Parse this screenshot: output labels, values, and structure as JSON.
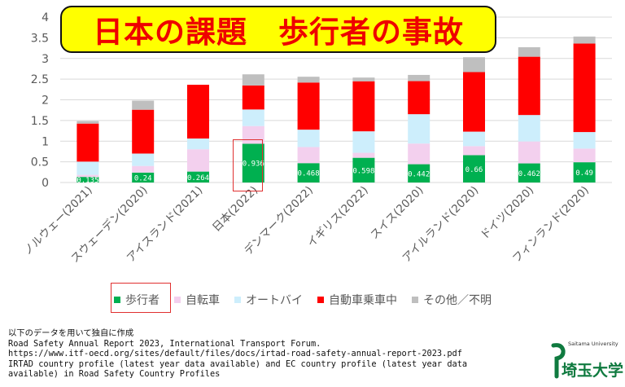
{
  "title": "日本の課題　歩行者の事故",
  "chart_data": {
    "type": "bar",
    "stacked": true,
    "categories": [
      "ノルウェー(2021)",
      "スウェーデン(2020)",
      "アイスランド(2021)",
      "日本(2022)",
      "デンマーク(2022)",
      "イギリス(2022)",
      "スイス(2020)",
      "アイルランド(2020)",
      "ドイツ(2020)",
      "フィンランド(2020)"
    ],
    "series": [
      {
        "name": "歩行者",
        "color": "#00b050",
        "values": [
          0.135,
          0.24,
          0.264,
          0.936,
          0.468,
          0.598,
          0.442,
          0.66,
          0.462,
          0.49
        ],
        "labels": [
          "0.135",
          "0.24",
          "0.264",
          "0.936",
          "0.468",
          "0.598",
          "0.442",
          "0.66",
          "0.462",
          "0.49"
        ]
      },
      {
        "name": "自転車",
        "color": "#f3d0ee",
        "values": [
          0.05,
          0.16,
          0.54,
          0.43,
          0.39,
          0.12,
          0.5,
          0.22,
          0.53,
          0.33
        ]
      },
      {
        "name": "オートバイ",
        "color": "#cdeefc",
        "values": [
          0.32,
          0.3,
          0.26,
          0.4,
          0.42,
          0.52,
          0.71,
          0.35,
          0.64,
          0.4
        ]
      },
      {
        "name": "自動車乗車中",
        "color": "#ff0000",
        "values": [
          0.92,
          1.06,
          1.3,
          0.58,
          1.14,
          1.21,
          0.8,
          1.44,
          1.41,
          2.14
        ]
      },
      {
        "name": "その他／不明",
        "color": "#bfbfbf",
        "values": [
          0.06,
          0.22,
          0.0,
          0.27,
          0.14,
          0.09,
          0.15,
          0.36,
          0.23,
          0.17
        ]
      }
    ],
    "yticks": [
      "0",
      "0.5",
      "1",
      "1.5",
      "2",
      "2.5",
      "3",
      "3.5",
      "4"
    ],
    "ylim": [
      0,
      4
    ],
    "grid": true,
    "legend_position": "bottom",
    "highlighted_category": "日本(2022)"
  },
  "source": {
    "lines": [
      "以下のデータを用いて独自に作成",
      "Road Safety Annual Report 2023, International Transport Forum.",
      "https://www.itf-oecd.org/sites/default/files/docs/irtad-road-safety-annual-report-2023.pdf",
      "IRTAD country profile (latest year data available) and EC country profile (latest year data",
      "available) in Road Safety Country Profiles"
    ]
  },
  "logo": {
    "en": "Saitama University",
    "jp": "埼玉大学"
  },
  "colors": {
    "title_bg": "#ffff00",
    "title_text": "#ee0000",
    "highlight": "#e03030",
    "logo": "#0f7a3f"
  }
}
